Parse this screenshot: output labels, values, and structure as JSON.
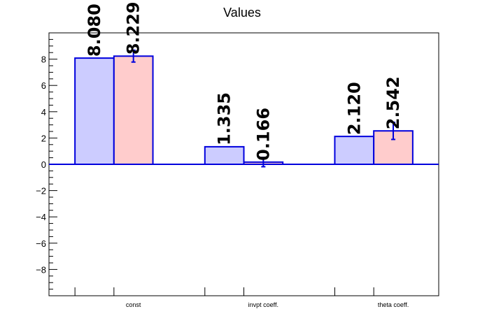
{
  "chart_data": {
    "type": "bar",
    "title": "Values",
    "categories": [
      "const",
      "invpt coeff.",
      "theta coeff."
    ],
    "ylim": [
      -10,
      10
    ],
    "yticks": [
      -8,
      -6,
      -4,
      -2,
      0,
      2,
      4,
      6,
      8
    ],
    "tick_labels": [
      "−8",
      "−6",
      "−4",
      "−2",
      "0",
      "2",
      "4",
      "6",
      "8"
    ],
    "series": [
      {
        "values": [
          8.08,
          1.335,
          2.12
        ],
        "labels": [
          "8.080",
          "1.335",
          "2.120"
        ],
        "errors": [
          0,
          0,
          0
        ],
        "fill": "#ccccff",
        "stroke": "#0000dd"
      },
      {
        "values": [
          8.229,
          0.166,
          2.542
        ],
        "labels": [
          "8.229",
          "0.166",
          "2.542"
        ],
        "errors": [
          0.45,
          0.35,
          0.65
        ],
        "fill": "#ffcccc",
        "stroke": "#0000dd"
      }
    ],
    "zero_line_color": "#0000dd",
    "grid": false,
    "legend": "none"
  }
}
